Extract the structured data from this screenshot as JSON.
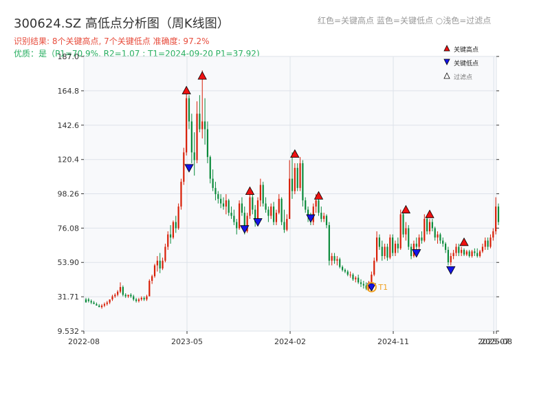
{
  "header": {
    "title": "300624.SZ 高低点分析图（周K线图）",
    "legend_high": "红色=关键高点",
    "legend_low": "蓝色=关键低点",
    "legend_filtered": "○浅色=过滤点",
    "result": "识别结果: 8个关键高点, 7个关键低点  准确度: 97.2%",
    "quality": "优质：是（P1=70.9%, R2=1.07 ; T1=2024-09-20 P1=37.92)"
  },
  "legend": {
    "high": "关键高点",
    "low": "关键低点",
    "filtered": "过滤点"
  },
  "colors": {
    "up": "#d81e06",
    "down": "#0a8a3a",
    "high_marker": "#ee1111",
    "low_marker": "#1414e6",
    "t1": "#f0a020",
    "plot_bg": "#f8f9fb",
    "grid": "#dde2ea"
  },
  "chart_data": {
    "type": "candlestick",
    "ylim": [
      9.532,
      187.0
    ],
    "y_ticks": [
      "187.0",
      "164.8",
      "142.6",
      "120.4",
      "98.26",
      "76.08",
      "53.90",
      "31.71",
      "9.532"
    ],
    "x_ticks": [
      "2022-08",
      "2023-05",
      "2024-02",
      "2024-11",
      "2025-07",
      "2025-08"
    ],
    "x_tick_positions": [
      0,
      39,
      78,
      117,
      155,
      156
    ],
    "series": [
      {
        "name": "weekly",
        "values": [
          [
            30,
            31,
            29,
            28
          ],
          [
            30,
            31,
            28,
            29
          ],
          [
            29,
            30,
            27,
            28
          ],
          [
            28,
            29,
            27,
            27
          ],
          [
            27,
            28,
            26,
            26
          ],
          [
            26,
            27,
            25,
            25
          ],
          [
            25,
            27,
            24,
            26
          ],
          [
            26,
            28,
            25,
            27
          ],
          [
            27,
            29,
            26,
            28
          ],
          [
            28,
            30,
            27,
            30
          ],
          [
            30,
            33,
            29,
            32
          ],
          [
            32,
            34,
            31,
            33
          ],
          [
            33,
            36,
            32,
            35
          ],
          [
            35,
            41,
            34,
            38
          ],
          [
            38,
            39,
            32,
            33
          ],
          [
            33,
            34,
            31,
            32
          ],
          [
            32,
            33,
            31,
            33
          ],
          [
            33,
            34,
            31,
            32
          ],
          [
            32,
            33,
            29,
            30
          ],
          [
            30,
            31,
            28,
            29
          ],
          [
            29,
            31,
            28,
            30
          ],
          [
            30,
            32,
            29,
            31
          ],
          [
            31,
            32,
            29,
            30
          ],
          [
            30,
            33,
            29,
            32
          ],
          [
            32,
            43,
            32,
            42
          ],
          [
            42,
            46,
            40,
            45
          ],
          [
            45,
            53,
            44,
            52
          ],
          [
            52,
            58,
            48,
            55
          ],
          [
            55,
            60,
            47,
            50
          ],
          [
            50,
            57,
            49,
            55
          ],
          [
            55,
            66,
            54,
            64
          ],
          [
            64,
            74,
            62,
            72
          ],
          [
            72,
            78,
            66,
            70
          ],
          [
            70,
            81,
            69,
            80
          ],
          [
            80,
            84,
            73,
            76
          ],
          [
            76,
            92,
            75,
            90
          ],
          [
            90,
            108,
            88,
            106
          ],
          [
            106,
            128,
            104,
            125
          ],
          [
            125,
            165,
            123,
            160
          ],
          [
            160,
            162,
            140,
            145
          ],
          [
            145,
            150,
            118,
            125
          ],
          [
            125,
            138,
            110,
            120
          ],
          [
            120,
            158,
            118,
            150
          ],
          [
            150,
            162,
            138,
            140
          ],
          [
            140,
            178,
            134,
            145
          ],
          [
            145,
            160,
            130,
            140
          ],
          [
            140,
            145,
            118,
            122
          ],
          [
            122,
            123,
            105,
            108
          ],
          [
            108,
            114,
            100,
            102
          ],
          [
            102,
            106,
            94,
            98
          ],
          [
            98,
            100,
            92,
            95
          ],
          [
            95,
            98,
            89,
            92
          ],
          [
            92,
            96,
            88,
            90
          ],
          [
            90,
            98,
            85,
            94
          ],
          [
            94,
            95,
            84,
            86
          ],
          [
            86,
            90,
            82,
            84
          ],
          [
            84,
            88,
            78,
            80
          ],
          [
            80,
            82,
            72,
            76
          ],
          [
            76,
            94,
            75,
            92
          ],
          [
            92,
            96,
            84,
            86
          ],
          [
            86,
            90,
            72,
            74
          ],
          [
            74,
            86,
            73,
            84
          ],
          [
            84,
            100,
            82,
            96
          ],
          [
            96,
            100,
            85,
            88
          ],
          [
            88,
            91,
            77,
            80
          ],
          [
            80,
            96,
            78,
            94
          ],
          [
            94,
            108,
            90,
            104
          ],
          [
            104,
            106,
            90,
            92
          ],
          [
            92,
            96,
            86,
            88
          ],
          [
            88,
            90,
            80,
            84
          ],
          [
            84,
            92,
            82,
            90
          ],
          [
            90,
            93,
            78,
            80
          ],
          [
            80,
            88,
            78,
            86
          ],
          [
            86,
            98,
            85,
            95
          ],
          [
            95,
            96,
            78,
            80
          ],
          [
            80,
            88,
            73,
            75
          ],
          [
            75,
            85,
            74,
            82
          ],
          [
            82,
            120,
            82,
            108
          ],
          [
            108,
            125,
            95,
            100
          ],
          [
            100,
            118,
            98,
            115
          ],
          [
            115,
            118,
            100,
            102
          ],
          [
            102,
            122,
            100,
            118
          ],
          [
            118,
            120,
            90,
            94
          ],
          [
            94,
            96,
            86,
            88
          ],
          [
            88,
            90,
            80,
            84
          ],
          [
            84,
            86,
            78,
            80
          ],
          [
            80,
            92,
            78,
            90
          ],
          [
            90,
            98,
            86,
            94
          ],
          [
            94,
            96,
            84,
            86
          ],
          [
            86,
            90,
            80,
            82
          ],
          [
            82,
            86,
            80,
            84
          ],
          [
            84,
            85,
            76,
            78
          ],
          [
            78,
            80,
            52,
            55
          ],
          [
            55,
            60,
            52,
            58
          ],
          [
            58,
            60,
            53,
            55
          ],
          [
            55,
            58,
            52,
            56
          ],
          [
            56,
            57,
            50,
            51
          ],
          [
            51,
            52,
            48,
            49
          ],
          [
            49,
            50,
            47,
            48
          ],
          [
            48,
            49,
            45,
            46
          ],
          [
            46,
            48,
            44,
            46
          ],
          [
            46,
            47,
            42,
            43
          ],
          [
            43,
            45,
            41,
            44
          ],
          [
            44,
            46,
            40,
            41
          ],
          [
            41,
            43,
            38,
            40
          ],
          [
            40,
            42,
            37,
            39
          ],
          [
            39,
            41,
            36,
            37
          ],
          [
            37,
            42,
            36,
            41
          ],
          [
            41,
            48,
            40,
            46
          ],
          [
            46,
            57,
            45,
            55
          ],
          [
            55,
            74,
            54,
            70
          ],
          [
            70,
            72,
            62,
            64
          ],
          [
            64,
            68,
            55,
            58
          ],
          [
            58,
            66,
            56,
            64
          ],
          [
            64,
            66,
            55,
            57
          ],
          [
            57,
            72,
            56,
            70
          ],
          [
            70,
            72,
            58,
            60
          ],
          [
            60,
            68,
            58,
            66
          ],
          [
            66,
            70,
            60,
            63
          ],
          [
            63,
            88,
            62,
            85
          ],
          [
            85,
            87,
            70,
            72
          ],
          [
            72,
            80,
            68,
            76
          ],
          [
            76,
            78,
            62,
            64
          ],
          [
            64,
            66,
            56,
            58
          ],
          [
            58,
            68,
            57,
            66
          ],
          [
            66,
            70,
            62,
            64
          ],
          [
            64,
            72,
            62,
            70
          ],
          [
            70,
            74,
            66,
            68
          ],
          [
            68,
            85,
            67,
            82
          ],
          [
            82,
            84,
            72,
            74
          ],
          [
            74,
            82,
            72,
            80
          ],
          [
            80,
            82,
            74,
            76
          ],
          [
            76,
            77,
            68,
            70
          ],
          [
            70,
            74,
            66,
            72
          ],
          [
            72,
            73,
            66,
            68
          ],
          [
            68,
            70,
            64,
            66
          ],
          [
            66,
            67,
            60,
            62
          ],
          [
            62,
            64,
            52,
            54
          ],
          [
            54,
            60,
            52,
            58
          ],
          [
            58,
            62,
            56,
            60
          ],
          [
            60,
            66,
            58,
            64
          ],
          [
            64,
            66,
            58,
            60
          ],
          [
            60,
            64,
            58,
            62
          ],
          [
            62,
            63,
            58,
            59
          ],
          [
            59,
            62,
            58,
            61
          ],
          [
            61,
            62,
            57,
            58
          ],
          [
            58,
            62,
            57,
            61
          ],
          [
            61,
            63,
            58,
            60
          ],
          [
            60,
            63,
            57,
            58
          ],
          [
            58,
            62,
            57,
            61
          ],
          [
            61,
            66,
            60,
            64
          ],
          [
            64,
            70,
            62,
            68
          ],
          [
            68,
            70,
            62,
            64
          ],
          [
            64,
            72,
            63,
            70
          ],
          [
            70,
            76,
            68,
            74
          ],
          [
            74,
            96,
            72,
            90
          ],
          [
            90,
            92,
            78,
            80
          ]
        ]
      }
    ],
    "key_highs": [
      {
        "index": 38,
        "value": 165.0
      },
      {
        "index": 44,
        "value": 174.5
      },
      {
        "index": 62,
        "value": 100.0
      },
      {
        "index": 79,
        "value": 124.0
      },
      {
        "index": 88,
        "value": 97.0
      },
      {
        "index": 121,
        "value": 88.0
      },
      {
        "index": 130,
        "value": 85.0
      },
      {
        "index": 143,
        "value": 67.0
      }
    ],
    "key_lows": [
      {
        "index": 39,
        "value": 115.0
      },
      {
        "index": 60,
        "value": 75.5
      },
      {
        "index": 65,
        "value": 80.0
      },
      {
        "index": 85,
        "value": 82.5
      },
      {
        "index": 108,
        "value": 38.0
      },
      {
        "index": 125,
        "value": 60.0
      },
      {
        "index": 138,
        "value": 49.0
      }
    ],
    "t1": {
      "index": 108,
      "value": 37.92,
      "label": "T1"
    }
  }
}
